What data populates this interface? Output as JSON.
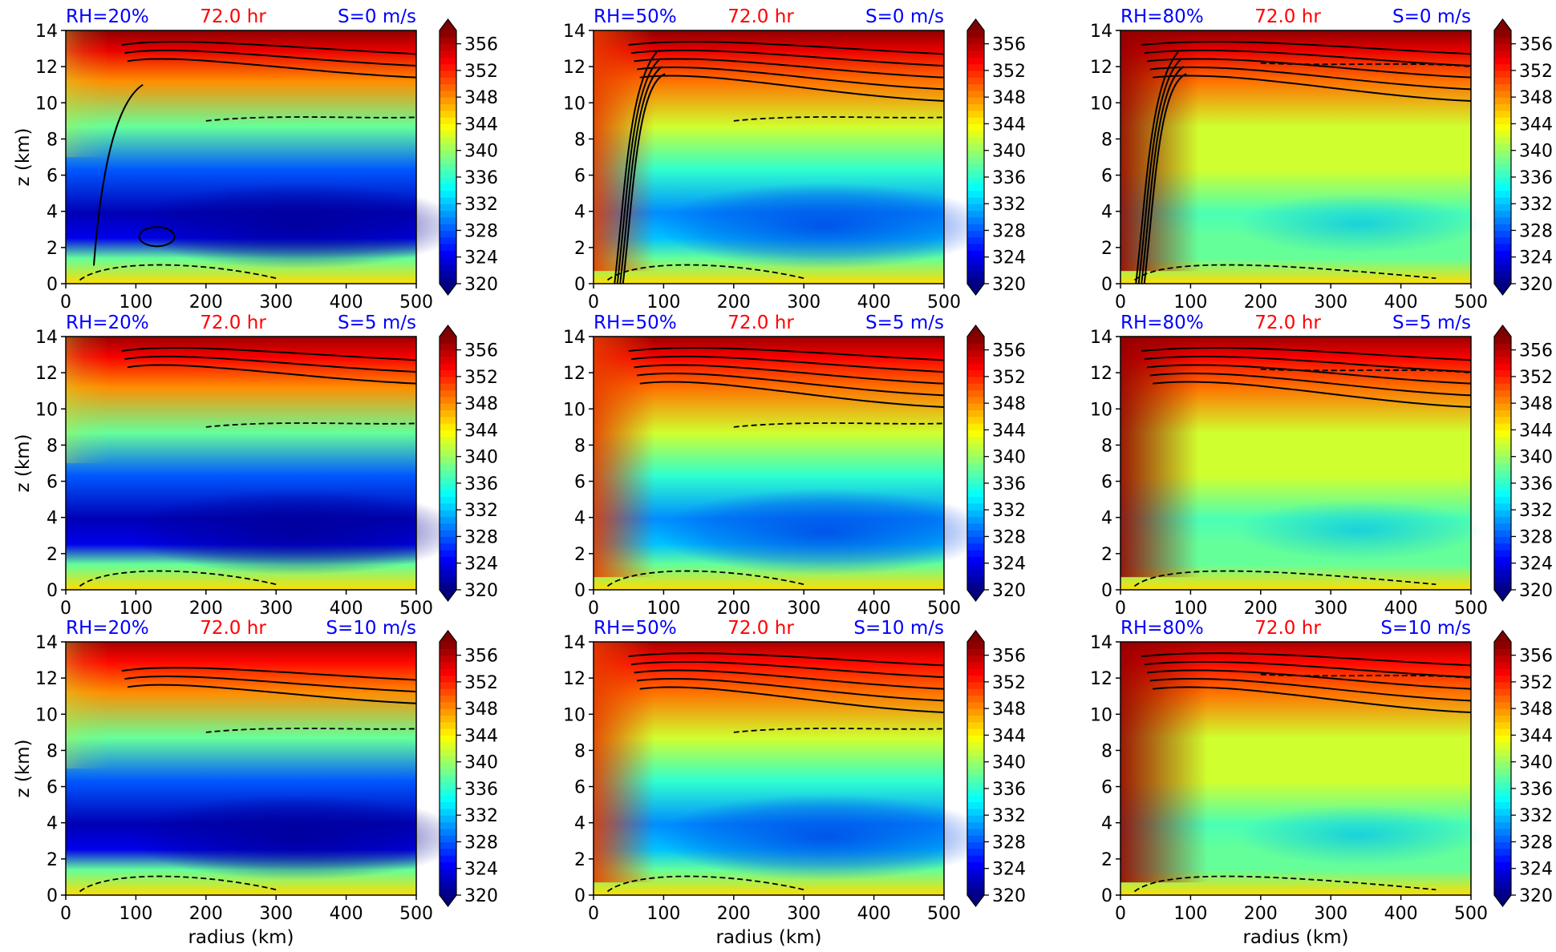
{
  "figure": {
    "time_label": "72.0 hr",
    "colors": {
      "title_blue": "#0000ff",
      "title_red": "#ff0000",
      "frame": "#000000"
    }
  },
  "chart_data": [
    {
      "type": "heatmap",
      "rh": "RH=20%",
      "time": "72.0 hr",
      "shear": "S=0 m/s",
      "rh_value": 20,
      "shear_value": 0,
      "xlabel": "",
      "ylabel": "z (km)"
    },
    {
      "type": "heatmap",
      "rh": "RH=50%",
      "time": "72.0 hr",
      "shear": "S=0 m/s",
      "rh_value": 50,
      "shear_value": 0,
      "xlabel": "",
      "ylabel": ""
    },
    {
      "type": "heatmap",
      "rh": "RH=80%",
      "time": "72.0 hr",
      "shear": "S=0 m/s",
      "rh_value": 80,
      "shear_value": 0,
      "xlabel": "",
      "ylabel": ""
    },
    {
      "type": "heatmap",
      "rh": "RH=20%",
      "time": "72.0 hr",
      "shear": "S=5 m/s",
      "rh_value": 20,
      "shear_value": 5,
      "xlabel": "",
      "ylabel": "z (km)"
    },
    {
      "type": "heatmap",
      "rh": "RH=50%",
      "time": "72.0 hr",
      "shear": "S=5 m/s",
      "rh_value": 50,
      "shear_value": 5,
      "xlabel": "",
      "ylabel": ""
    },
    {
      "type": "heatmap",
      "rh": "RH=80%",
      "time": "72.0 hr",
      "shear": "S=5 m/s",
      "rh_value": 80,
      "shear_value": 5,
      "xlabel": "",
      "ylabel": ""
    },
    {
      "type": "heatmap",
      "rh": "RH=20%",
      "time": "72.0 hr",
      "shear": "S=10 m/s",
      "rh_value": 20,
      "shear_value": 10,
      "xlabel": "radius (km)",
      "ylabel": "z (km)"
    },
    {
      "type": "heatmap",
      "rh": "RH=50%",
      "time": "72.0 hr",
      "shear": "S=10 m/s",
      "rh_value": 50,
      "shear_value": 10,
      "xlabel": "radius (km)",
      "ylabel": ""
    },
    {
      "type": "heatmap",
      "rh": "RH=80%",
      "time": "72.0 hr",
      "shear": "S=10 m/s",
      "rh_value": 80,
      "shear_value": 10,
      "xlabel": "radius (km)",
      "ylabel": ""
    }
  ],
  "axes": {
    "xlim": [
      0,
      500
    ],
    "ylim": [
      0,
      14
    ],
    "x_ticks": [
      "0",
      "100",
      "200",
      "300",
      "400",
      "500"
    ],
    "y_ticks": [
      "0",
      "2",
      "4",
      "6",
      "8",
      "10",
      "12",
      "14"
    ]
  },
  "colorbar": {
    "ticks": [
      "320",
      "324",
      "328",
      "332",
      "336",
      "340",
      "344",
      "348",
      "352",
      "356"
    ],
    "range": [
      320,
      358
    ],
    "extend": "both"
  }
}
